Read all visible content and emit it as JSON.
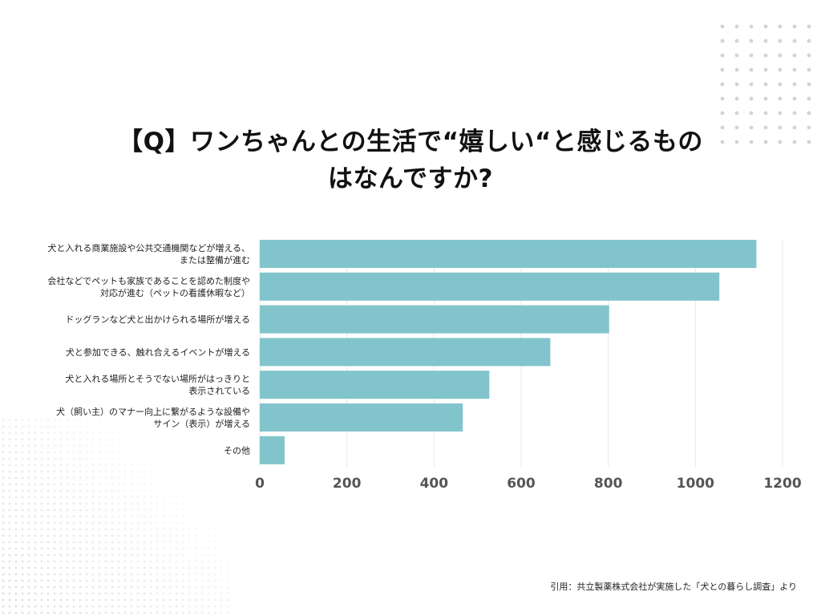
{
  "title": "【Q】ワンちゃんとの生活で“嬉しい“と感じるもの\nはなんですか?",
  "citation": "引用：共立製薬株式会社が実施した「犬との暮らし調査」より",
  "chart_data": {
    "type": "bar",
    "orientation": "horizontal",
    "categories": [
      "犬と入れる商業施設や公共交通機関などが増える、\nまたは整備が進む",
      "会社などでペットも家族であることを認めた制度や\n対応が進む（ペットの看護休暇など）",
      "ドッグランなど犬と出かけられる場所が増える",
      "犬と参加できる、触れ合えるイベントが増える",
      "犬と入れる場所とそうでない場所がはっきりと\n表示されている",
      "犬（飼い主）のマナー向上に繋がるような設備や\nサイン（表示）が増える",
      "その他"
    ],
    "values": [
      1140,
      1055,
      802,
      667,
      527,
      466,
      57
    ],
    "xlim": [
      0,
      1200
    ],
    "ticks": [
      0,
      200,
      400,
      600,
      800,
      1000,
      1200
    ],
    "grid": true,
    "bar_color": "#82c4cc",
    "grid_color": "#e7e7e7",
    "tick_color": "#555555"
  }
}
